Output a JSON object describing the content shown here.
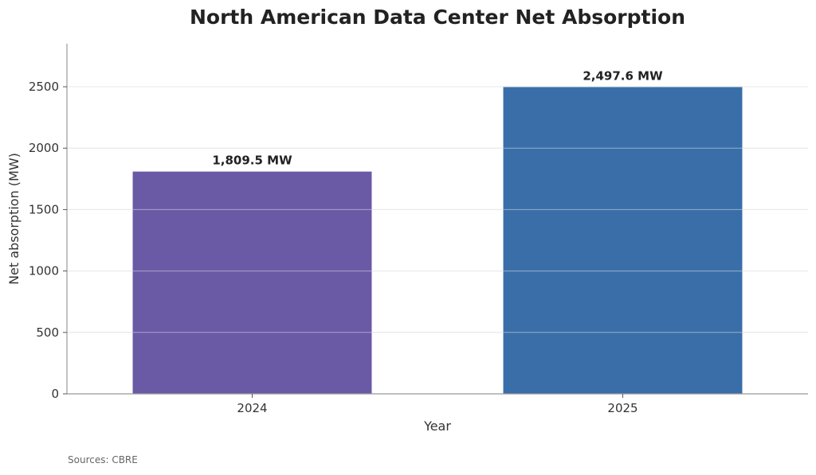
{
  "chart_data": {
    "type": "bar",
    "title": "North American Data Center Net Absorption",
    "xlabel": "Year",
    "ylabel": "Net absorption (MW)",
    "categories": [
      "2024",
      "2025"
    ],
    "values": [
      1809.5,
      2497.6
    ],
    "data_labels": [
      "1,809.5 MW",
      "2,497.6 MW"
    ],
    "colors": [
      "#6a5aa6",
      "#3a6ea8"
    ],
    "ylim": [
      0,
      2850
    ],
    "yticks": [
      0,
      500,
      1000,
      1500,
      2000,
      2500
    ],
    "ytick_labels": [
      "0",
      "500",
      "1000",
      "1500",
      "2000",
      "2500"
    ],
    "grid": true
  },
  "footer": {
    "source": "Sources: CBRE"
  }
}
